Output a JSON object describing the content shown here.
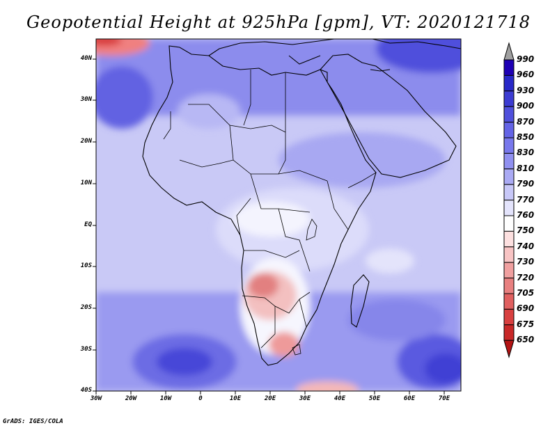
{
  "title": "Geopotential Height at 925hPa [gpm], VT: 2020121718",
  "lat_labels": [
    "40N",
    "30N",
    "20N",
    "10N",
    "EQ",
    "10S",
    "20S",
    "30S",
    "40S"
  ],
  "lon_labels": [
    "30W",
    "20W",
    "10W",
    "0",
    "10E",
    "20E",
    "30E",
    "40E",
    "50E",
    "60E",
    "70E"
  ],
  "colorbar": {
    "labels": [
      "990",
      "960",
      "930",
      "900",
      "870",
      "850",
      "830",
      "810",
      "790",
      "770",
      "760",
      "750",
      "740",
      "730",
      "720",
      "705",
      "690",
      "675",
      "650"
    ],
    "colors": [
      "#a0a0a0",
      "#1e00b4",
      "#2828c8",
      "#3c3cd2",
      "#5050dc",
      "#6464e6",
      "#7878ec",
      "#9090f0",
      "#aaaaf4",
      "#c8c8f8",
      "#e4e4fc",
      "#ffffff",
      "#fde0e0",
      "#f8c4c4",
      "#f0a0a0",
      "#e88080",
      "#e06060",
      "#d84040",
      "#c82828",
      "#b41414"
    ]
  },
  "credit": "GrADS: IGES/COLA"
}
